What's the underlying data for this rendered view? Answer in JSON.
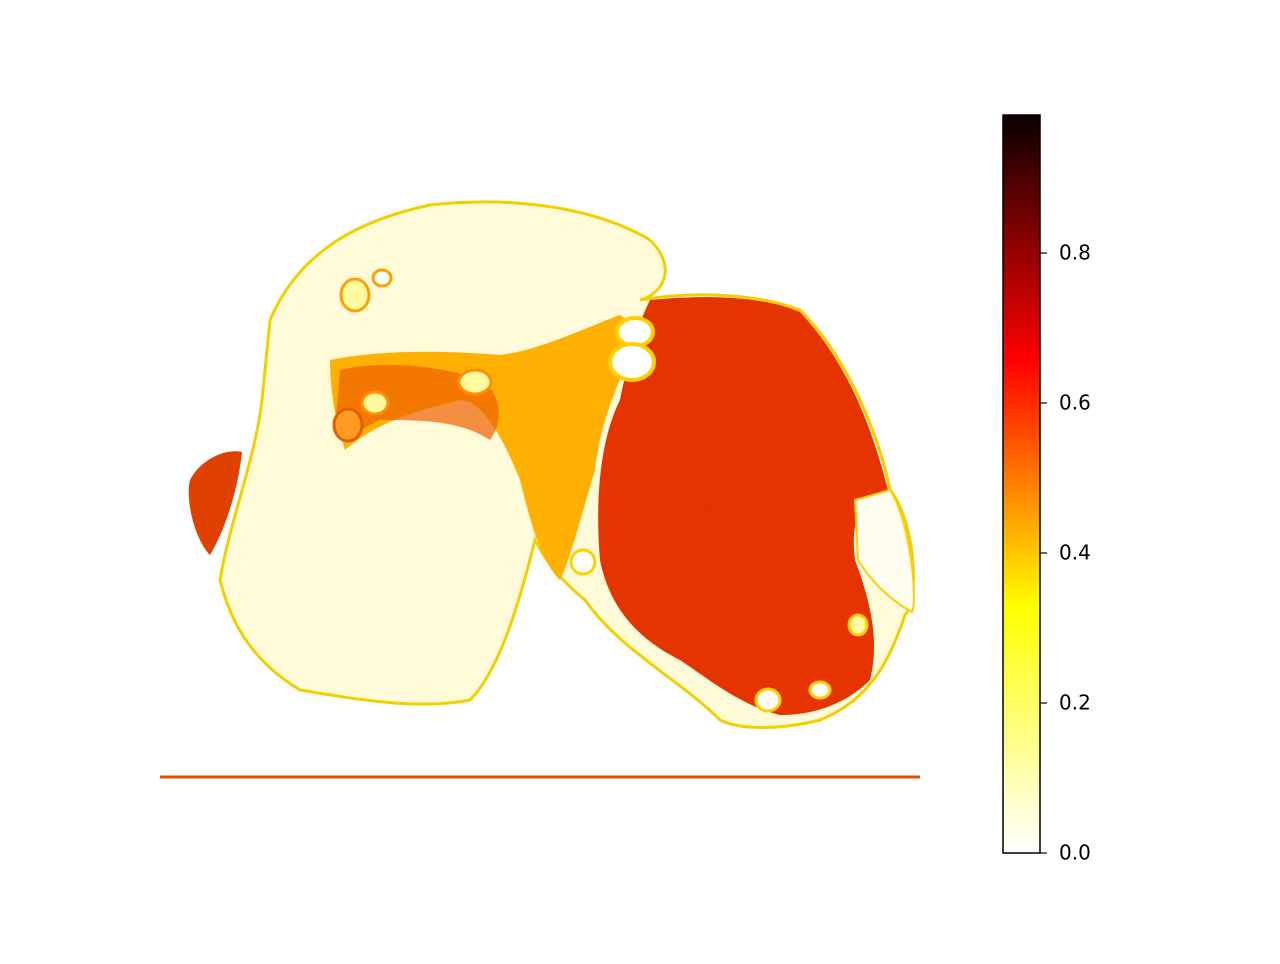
{
  "chart_data": {
    "type": "heatmap",
    "cmap": "hot_r",
    "colors": [
      "#ffffff",
      "#ffff00",
      "#ff0000",
      "#0b0000"
    ],
    "clim": [
      0,
      0.984
    ],
    "cticks": [
      {
        "value": 0,
        "label": "0.0"
      },
      0.2,
      0.4,
      0.6,
      0.8
    ]
  }
}
